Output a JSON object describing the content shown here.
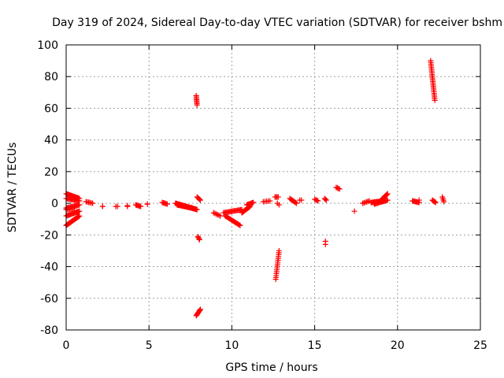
{
  "chart_data": {
    "type": "scatter",
    "title": "Day 319 of 2024, Sidereal Day-to-day VTEC variation (SDTVAR) for receiver bshm",
    "xlabel": "GPS time / hours",
    "ylabel": "SDTVAR / TECUs",
    "xlim": [
      0,
      25
    ],
    "ylim": [
      -80,
      100
    ],
    "xticks": [
      0,
      5,
      10,
      15,
      20,
      25
    ],
    "yticks": [
      -80,
      -60,
      -40,
      -20,
      0,
      20,
      40,
      60,
      80,
      100
    ],
    "grid": true,
    "marker": "plus",
    "color": "#ff0000",
    "segments": [
      {
        "x0": 0.0,
        "y0": 6.0,
        "x1": 0.8,
        "y1": 3.0,
        "n": 18
      },
      {
        "x0": 0.0,
        "y0": 3.0,
        "x1": 0.8,
        "y1": 1.5,
        "n": 14
      },
      {
        "x0": 0.0,
        "y0": -3.0,
        "x1": 0.8,
        "y1": -1.0,
        "n": 14
      },
      {
        "x0": 0.0,
        "y0": -8.0,
        "x1": 0.8,
        "y1": -5.0,
        "n": 16
      },
      {
        "x0": 0.0,
        "y0": -14.0,
        "x1": 0.8,
        "y1": -8.0,
        "n": 20
      },
      {
        "x0": 0.0,
        "y0": -4.0,
        "x1": 0.5,
        "y1": -3.0,
        "n": 8
      },
      {
        "x0": 1.2,
        "y0": 1.0,
        "x1": 1.6,
        "y1": 0.0,
        "n": 6
      },
      {
        "x0": 2.2,
        "y0": -2.0,
        "x1": 2.2,
        "y1": -2.0,
        "n": 2
      },
      {
        "x0": 3.0,
        "y0": -2.0,
        "x1": 3.1,
        "y1": -2.0,
        "n": 2
      },
      {
        "x0": 3.7,
        "y0": -1.5,
        "x1": 3.7,
        "y1": -2.0,
        "n": 2
      },
      {
        "x0": 4.2,
        "y0": -1.0,
        "x1": 4.5,
        "y1": -2.0,
        "n": 6
      },
      {
        "x0": 4.9,
        "y0": -0.5,
        "x1": 4.9,
        "y1": -0.5,
        "n": 2
      },
      {
        "x0": 5.8,
        "y0": 0.5,
        "x1": 6.1,
        "y1": -0.5,
        "n": 6
      },
      {
        "x0": 6.6,
        "y0": 0.0,
        "x1": 7.9,
        "y1": -4.0,
        "n": 30
      },
      {
        "x0": 6.7,
        "y0": -1.0,
        "x1": 7.6,
        "y1": -3.0,
        "n": 20
      },
      {
        "x0": 7.85,
        "y0": 68.0,
        "x1": 7.9,
        "y1": 62.0,
        "n": 8
      },
      {
        "x0": 7.9,
        "y0": 4.0,
        "x1": 8.1,
        "y1": 2.0,
        "n": 5
      },
      {
        "x0": 7.95,
        "y0": -21.0,
        "x1": 8.05,
        "y1": -23.0,
        "n": 4
      },
      {
        "x0": 7.85,
        "y0": -71.0,
        "x1": 8.1,
        "y1": -67.0,
        "n": 8
      },
      {
        "x0": 8.9,
        "y0": -6.0,
        "x1": 9.3,
        "y1": -8.0,
        "n": 6
      },
      {
        "x0": 9.5,
        "y0": -6.0,
        "x1": 10.6,
        "y1": -4.0,
        "n": 18
      },
      {
        "x0": 9.6,
        "y0": -8.0,
        "x1": 10.5,
        "y1": -14.0,
        "n": 16
      },
      {
        "x0": 10.6,
        "y0": -6.0,
        "x1": 11.1,
        "y1": -2.0,
        "n": 12
      },
      {
        "x0": 10.9,
        "y0": -1.0,
        "x1": 11.3,
        "y1": 0.5,
        "n": 8
      },
      {
        "x0": 11.9,
        "y0": 1.0,
        "x1": 12.3,
        "y1": 1.5,
        "n": 5
      },
      {
        "x0": 12.6,
        "y0": 4.0,
        "x1": 12.8,
        "y1": 4.0,
        "n": 4
      },
      {
        "x0": 12.65,
        "y0": -48.0,
        "x1": 12.85,
        "y1": -30.0,
        "n": 16
      },
      {
        "x0": 12.75,
        "y0": 0.0,
        "x1": 12.85,
        "y1": -1.0,
        "n": 2
      },
      {
        "x0": 13.5,
        "y0": 3.0,
        "x1": 13.9,
        "y1": 0.0,
        "n": 8
      },
      {
        "x0": 14.1,
        "y0": 2.0,
        "x1": 14.2,
        "y1": 2.0,
        "n": 2
      },
      {
        "x0": 15.0,
        "y0": 2.5,
        "x1": 15.2,
        "y1": 1.5,
        "n": 4
      },
      {
        "x0": 15.6,
        "y0": 3.0,
        "x1": 15.7,
        "y1": 2.0,
        "n": 3
      },
      {
        "x0": 15.65,
        "y0": -24.0,
        "x1": 15.65,
        "y1": -26.0,
        "n": 2
      },
      {
        "x0": 16.3,
        "y0": 10.0,
        "x1": 16.5,
        "y1": 9.0,
        "n": 4
      },
      {
        "x0": 17.4,
        "y0": -5.0,
        "x1": 17.4,
        "y1": -5.0,
        "n": 1
      },
      {
        "x0": 17.9,
        "y0": 0.0,
        "x1": 18.3,
        "y1": 1.5,
        "n": 6
      },
      {
        "x0": 18.4,
        "y0": 0.5,
        "x1": 19.2,
        "y1": 1.5,
        "n": 16
      },
      {
        "x0": 18.6,
        "y0": -0.5,
        "x1": 19.4,
        "y1": 2.0,
        "n": 14
      },
      {
        "x0": 19.1,
        "y0": 3.0,
        "x1": 19.4,
        "y1": 6.0,
        "n": 8
      },
      {
        "x0": 20.9,
        "y0": 1.5,
        "x1": 21.3,
        "y1": 0.5,
        "n": 8
      },
      {
        "x0": 21.3,
        "y0": 2.0,
        "x1": 21.3,
        "y1": 2.0,
        "n": 1
      },
      {
        "x0": 22.0,
        "y0": 90.0,
        "x1": 22.25,
        "y1": 65.0,
        "n": 24
      },
      {
        "x0": 22.1,
        "y0": 2.0,
        "x1": 22.3,
        "y1": 0.5,
        "n": 5
      },
      {
        "x0": 22.7,
        "y0": 4.0,
        "x1": 22.8,
        "y1": 1.0,
        "n": 4
      }
    ]
  }
}
